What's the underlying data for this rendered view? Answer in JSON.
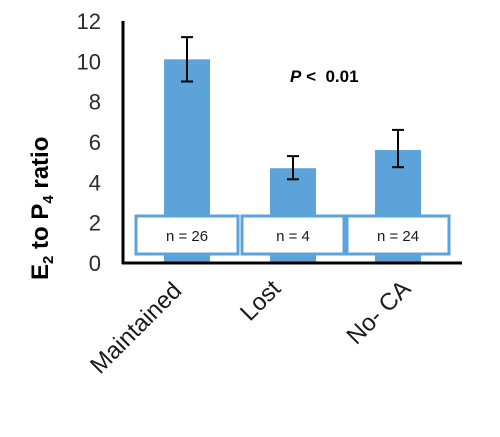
{
  "chart_data": {
    "type": "bar",
    "title": "",
    "xlabel": "",
    "ylabel": {
      "prefix": "E",
      "sub1": "2",
      "middle": " to P",
      "sub2": "4",
      "suffix": " ratio"
    },
    "ylim": [
      0,
      12
    ],
    "yticks": [
      "0",
      "2",
      "4",
      "6",
      "8",
      "10",
      "12"
    ],
    "categories": [
      "Maintained",
      "Lost",
      "No- CA"
    ],
    "values": [
      10.1,
      4.7,
      5.6
    ],
    "error_low": [
      9.0,
      4.15,
      4.75
    ],
    "error_high": [
      11.2,
      5.3,
      6.6
    ],
    "n_labels": [
      "n = 26",
      "n = 4",
      "n = 24"
    ],
    "annotation": {
      "italic": "P",
      "rest": " <  0.01"
    },
    "bar_color": "#5ba3d9",
    "box_border_color": "#5ba3d9",
    "grid": false
  }
}
